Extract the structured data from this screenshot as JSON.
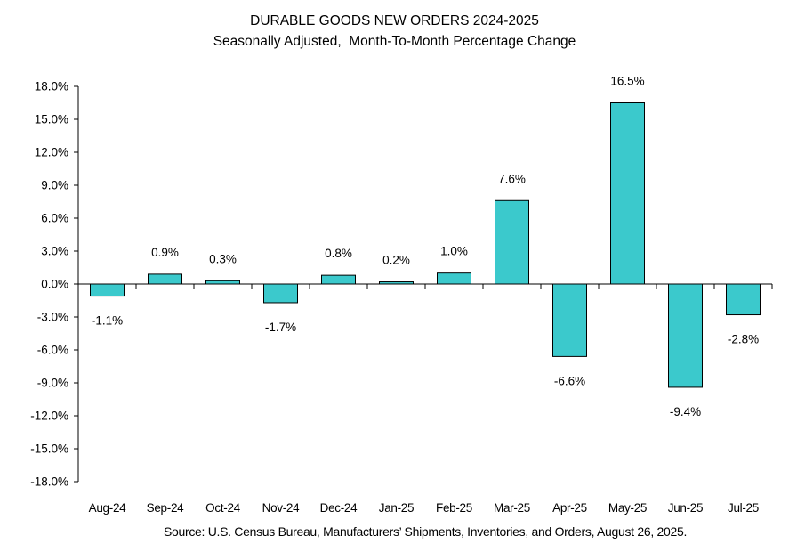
{
  "chart_data": {
    "type": "bar",
    "title": "DURABLE GOODS NEW ORDERS 2024-2025",
    "subtitle": "Seasonally Adjusted,  Month-To-Month Percentage Change",
    "categories": [
      "Aug-24",
      "Sep-24",
      "Oct-24",
      "Nov-24",
      "Dec-24",
      "Jan-25",
      "Feb-25",
      "Mar-25",
      "Apr-25",
      "May-25",
      "Jun-25",
      "Jul-25"
    ],
    "values": [
      -1.1,
      0.9,
      0.3,
      -1.7,
      0.8,
      0.2,
      1.0,
      7.6,
      -6.6,
      16.5,
      -9.4,
      -2.8
    ],
    "data_labels": [
      "-1.1%",
      "0.9%",
      "0.3%",
      "-1.7%",
      "0.8%",
      "0.2%",
      "1.0%",
      "7.6%",
      "-6.6%",
      "16.5%",
      "-9.4%",
      "-2.8%"
    ],
    "ylim": [
      -18,
      18
    ],
    "ytick_step": 3,
    "ytick_labels": [
      "18.0%",
      "15.0%",
      "12.0%",
      "9.0%",
      "6.0%",
      "3.0%",
      "0.0%",
      "-3.0%",
      "-6.0%",
      "-9.0%",
      "-12.0%",
      "-15.0%",
      "-18.0%"
    ],
    "grid": false,
    "legend": null,
    "colors": {
      "bar_fill": "#3BC9CC",
      "bar_border": "#000000",
      "axis": "#000000",
      "text": "#000000",
      "background": "#FFFFFF"
    }
  },
  "footer": {
    "source": "Source: U.S. Census Bureau, Manufacturers’ Shipments, Inventories, and Orders, August 26, 2025."
  }
}
